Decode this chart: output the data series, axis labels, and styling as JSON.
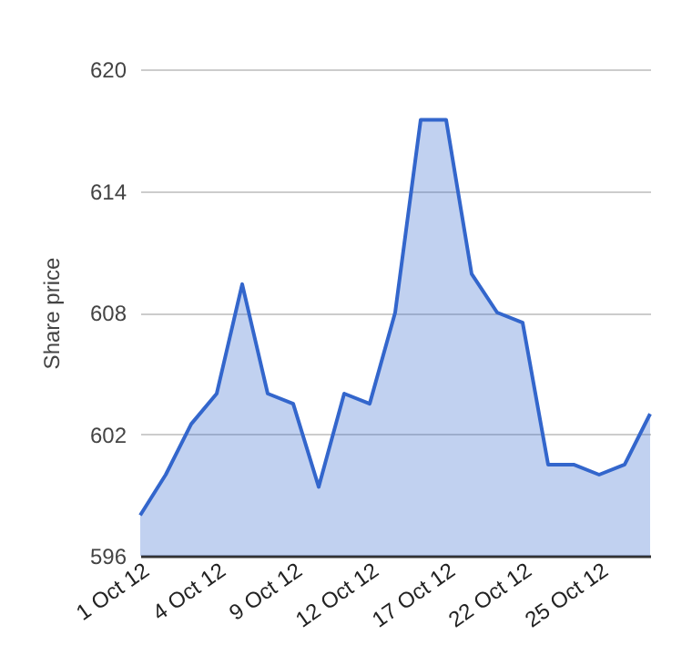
{
  "chart_data": {
    "type": "area",
    "ylabel": "Share price",
    "categories": [
      "1 Oct 12",
      null,
      null,
      "4 Oct 12",
      null,
      null,
      "9 Oct 12",
      null,
      null,
      "12 Oct 12",
      null,
      null,
      "17 Oct 12",
      null,
      null,
      "22 Oct 12",
      null,
      null,
      "25 Oct 12",
      null,
      null
    ],
    "series": [
      {
        "color": "#3366cc",
        "values": [
          598.0,
          600.0,
          602.5,
          604.0,
          609.4,
          604.0,
          603.5,
          599.4,
          604.0,
          603.5,
          608.0,
          617.5,
          617.5,
          609.9,
          608.0,
          607.5,
          600.5,
          600.5,
          600.0,
          600.5,
          603.0
        ]
      }
    ],
    "ylim": [
      596,
      620
    ],
    "yticks": [
      596,
      602,
      608,
      614,
      620
    ],
    "grid": "y"
  }
}
